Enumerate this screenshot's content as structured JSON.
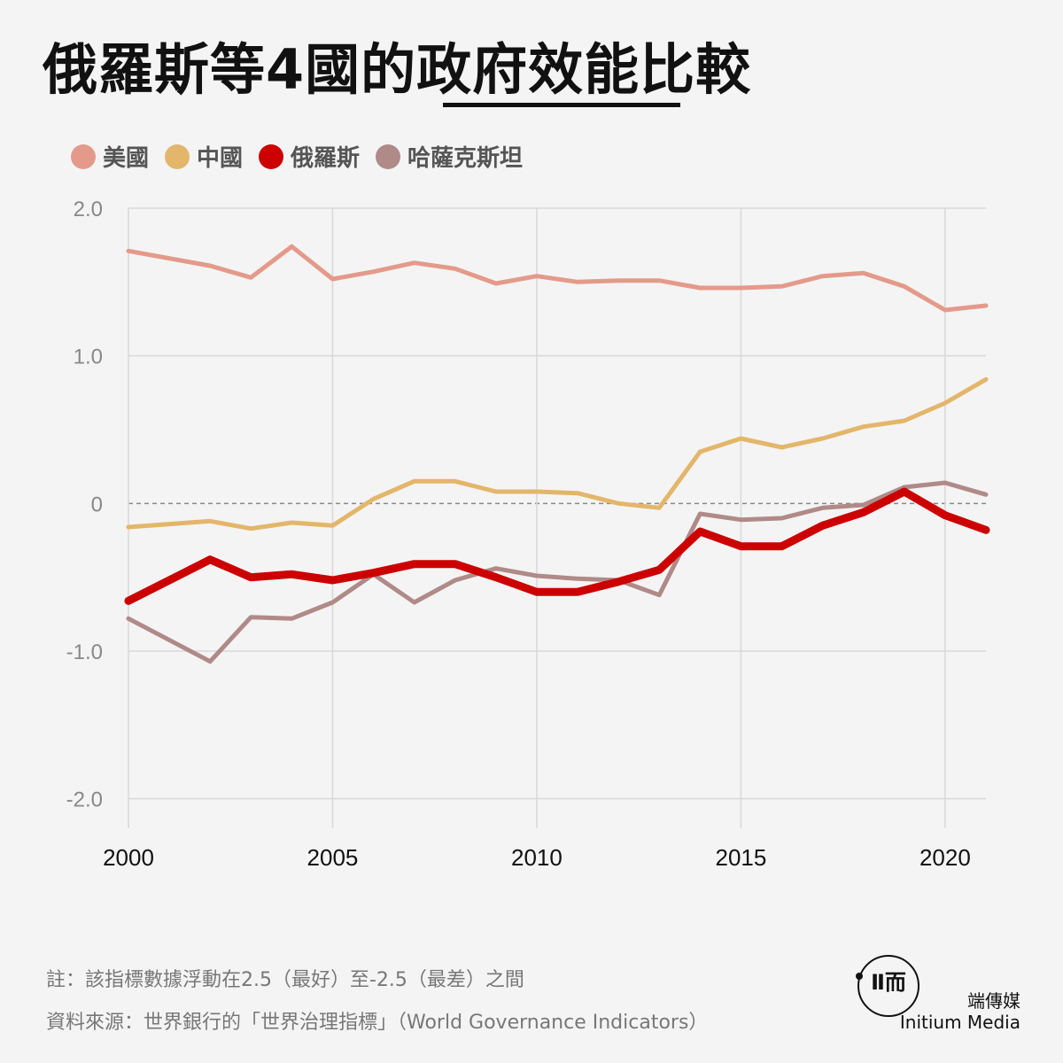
{
  "header": {
    "title": "俄羅斯等4國的政府效能比較"
  },
  "legend": [
    {
      "label": "美國",
      "color": "#e49a8a"
    },
    {
      "label": "中國",
      "color": "#e3b66b"
    },
    {
      "label": "俄羅斯",
      "color": "#cc0000"
    },
    {
      "label": "哈薩克斯坦",
      "color": "#b08a88"
    }
  ],
  "chart_data": {
    "type": "line",
    "title": "俄羅斯等4國的政府效能比較",
    "xlabel": "",
    "ylabel": "",
    "xlim": [
      2000,
      2021
    ],
    "ylim": [
      -2.2,
      2.0
    ],
    "x_ticks": [
      "2000",
      "2005",
      "2010",
      "2015",
      "2020"
    ],
    "y_ticks": [
      "2.0",
      "1.0",
      "0",
      "-1.0",
      "-2.0"
    ],
    "grid": true,
    "zero_line": "dashed",
    "legend_position": "top-left",
    "x": [
      2000,
      2002,
      2003,
      2004,
      2005,
      2006,
      2007,
      2008,
      2009,
      2010,
      2011,
      2012,
      2013,
      2014,
      2015,
      2016,
      2017,
      2018,
      2019,
      2020,
      2021
    ],
    "series": [
      {
        "name": "美國",
        "color": "#e49a8a",
        "values": [
          1.71,
          1.61,
          1.53,
          1.74,
          1.52,
          1.57,
          1.63,
          1.59,
          1.49,
          1.54,
          1.5,
          1.51,
          1.51,
          1.46,
          1.46,
          1.47,
          1.54,
          1.56,
          1.47,
          1.31,
          1.34
        ]
      },
      {
        "name": "中國",
        "color": "#e3b66b",
        "values": [
          -0.16,
          -0.12,
          -0.17,
          -0.13,
          -0.15,
          0.03,
          0.15,
          0.15,
          0.08,
          0.08,
          0.07,
          0.0,
          -0.03,
          0.35,
          0.44,
          0.38,
          0.44,
          0.52,
          0.56,
          0.68,
          0.84
        ]
      },
      {
        "name": "俄羅斯",
        "color": "#cc0000",
        "values": [
          -0.66,
          -0.38,
          -0.5,
          -0.48,
          -0.52,
          -0.47,
          -0.41,
          -0.41,
          -0.5,
          -0.6,
          -0.6,
          -0.53,
          -0.45,
          -0.19,
          -0.29,
          -0.29,
          -0.15,
          -0.06,
          0.08,
          -0.08,
          -0.18
        ]
      },
      {
        "name": "哈薩克斯坦",
        "color": "#b08a88",
        "values": [
          -0.78,
          -1.07,
          -0.77,
          -0.78,
          -0.67,
          -0.48,
          -0.67,
          -0.52,
          -0.44,
          -0.49,
          -0.51,
          -0.52,
          -0.62,
          -0.07,
          -0.11,
          -0.1,
          -0.03,
          -0.01,
          0.11,
          0.14,
          0.06
        ]
      }
    ]
  },
  "footer": {
    "note": "註：該指標數據浮動在2.5（最好）至-2.5（最差）之間",
    "source": "資料來源：世界銀行的「世界治理指標」（World Governance Indicators）"
  },
  "brand": {
    "logo_mark": "Ⅱ而",
    "name_cn": "端傳媒",
    "name_en": "Initium Media"
  }
}
